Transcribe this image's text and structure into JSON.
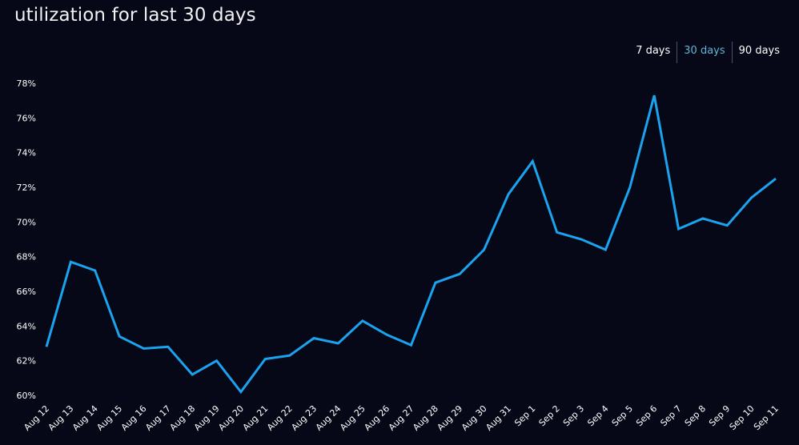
{
  "header": {
    "title": "utilization for last 30 days"
  },
  "range_switch": {
    "options": [
      "7 days",
      "30 days",
      "90 days"
    ],
    "selected": "30 days",
    "active_color": "#5fb6d6"
  },
  "colors": {
    "background": "#070817",
    "line": "#1aa3ee",
    "text": "#ffffff"
  },
  "chart_data": {
    "type": "line",
    "title": "utilization for last 30 days",
    "xlabel": "",
    "ylabel": "",
    "ylim": [
      60,
      78
    ],
    "yticks": [
      "60%",
      "62%",
      "64%",
      "66%",
      "68%",
      "70%",
      "72%",
      "74%",
      "76%",
      "78%"
    ],
    "grid": false,
    "categories": [
      "Aug 12",
      "Aug 13",
      "Aug 14",
      "Aug 15",
      "Aug 16",
      "Aug 17",
      "Aug 18",
      "Aug 19",
      "Aug 20",
      "Aug 21",
      "Aug 22",
      "Aug 23",
      "Aug 24",
      "Aug 25",
      "Aug 26",
      "Aug 27",
      "Aug 28",
      "Aug 29",
      "Aug 30",
      "Aug 31",
      "Sep 1",
      "Sep 2",
      "Sep 3",
      "Sep 4",
      "Sep 5",
      "Sep 6",
      "Sep 7",
      "Sep 8",
      "Sep 9",
      "Sep 10",
      "Sep 11"
    ],
    "series": [
      {
        "values": [
          62.8,
          67.7,
          67.2,
          63.4,
          62.7,
          62.8,
          61.2,
          62.0,
          60.2,
          62.1,
          62.3,
          63.3,
          63.0,
          64.3,
          63.5,
          62.9,
          66.5,
          67.0,
          68.4,
          71.6,
          73.5,
          69.4,
          69.0,
          68.4,
          72.0,
          77.3,
          69.6,
          70.2,
          69.8,
          71.4,
          72.5
        ]
      }
    ]
  }
}
